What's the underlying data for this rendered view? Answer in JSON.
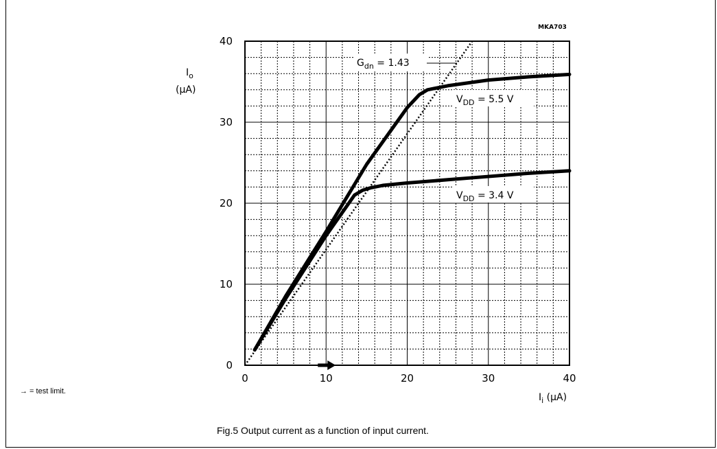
{
  "figure_code": "MKA703",
  "note": "→ = test limit.",
  "caption": "Fig.5  Output current as a function of input current.",
  "chart_data": {
    "type": "line",
    "title": "",
    "xlabel": "Ii (μA)",
    "ylabel": "Io (μA)",
    "xlim": [
      0,
      40
    ],
    "ylim": [
      0,
      40
    ],
    "xticks": [
      0,
      10,
      20,
      30,
      40
    ],
    "yticks": [
      0,
      10,
      20,
      30,
      40
    ],
    "grid": "major and minor (dotted)",
    "x_label_main": "I",
    "x_label_sub": "i",
    "x_label_unit": "(μA)",
    "y_label_main": "I",
    "y_label_sub": "o",
    "y_label_unit": "(μA)",
    "series": [
      {
        "name": "VDD = 5.5 V",
        "label_main": "V",
        "label_sub": "DD",
        "label_rest": " = 5.5 V",
        "style": "solid-thick",
        "x": [
          1.2,
          5,
          10,
          15,
          20,
          21.5,
          22.5,
          25,
          30,
          35,
          40
        ],
        "y": [
          1.9,
          8.5,
          16.5,
          24.8,
          31.8,
          33.4,
          34.0,
          34.5,
          35.2,
          35.6,
          35.9
        ]
      },
      {
        "name": "VDD = 3.4 V",
        "label_main": "V",
        "label_sub": "DD",
        "label_rest": " = 3.4 V",
        "style": "solid-thick",
        "x": [
          1.2,
          5,
          10,
          13.5,
          14.5,
          15.5,
          17,
          20,
          25,
          30,
          35,
          40
        ],
        "y": [
          1.9,
          8.2,
          16,
          21,
          21.6,
          21.9,
          22.2,
          22.5,
          22.9,
          23.3,
          23.7,
          24.0
        ]
      },
      {
        "name": "Gdn = 1.43",
        "label_main": "G",
        "label_sub": "dn",
        "label_rest": " = 1.43",
        "style": "dotted",
        "x": [
          0,
          28
        ],
        "y": [
          0,
          40
        ]
      }
    ],
    "test_limit_marker": {
      "x": 10,
      "y": 0
    }
  }
}
